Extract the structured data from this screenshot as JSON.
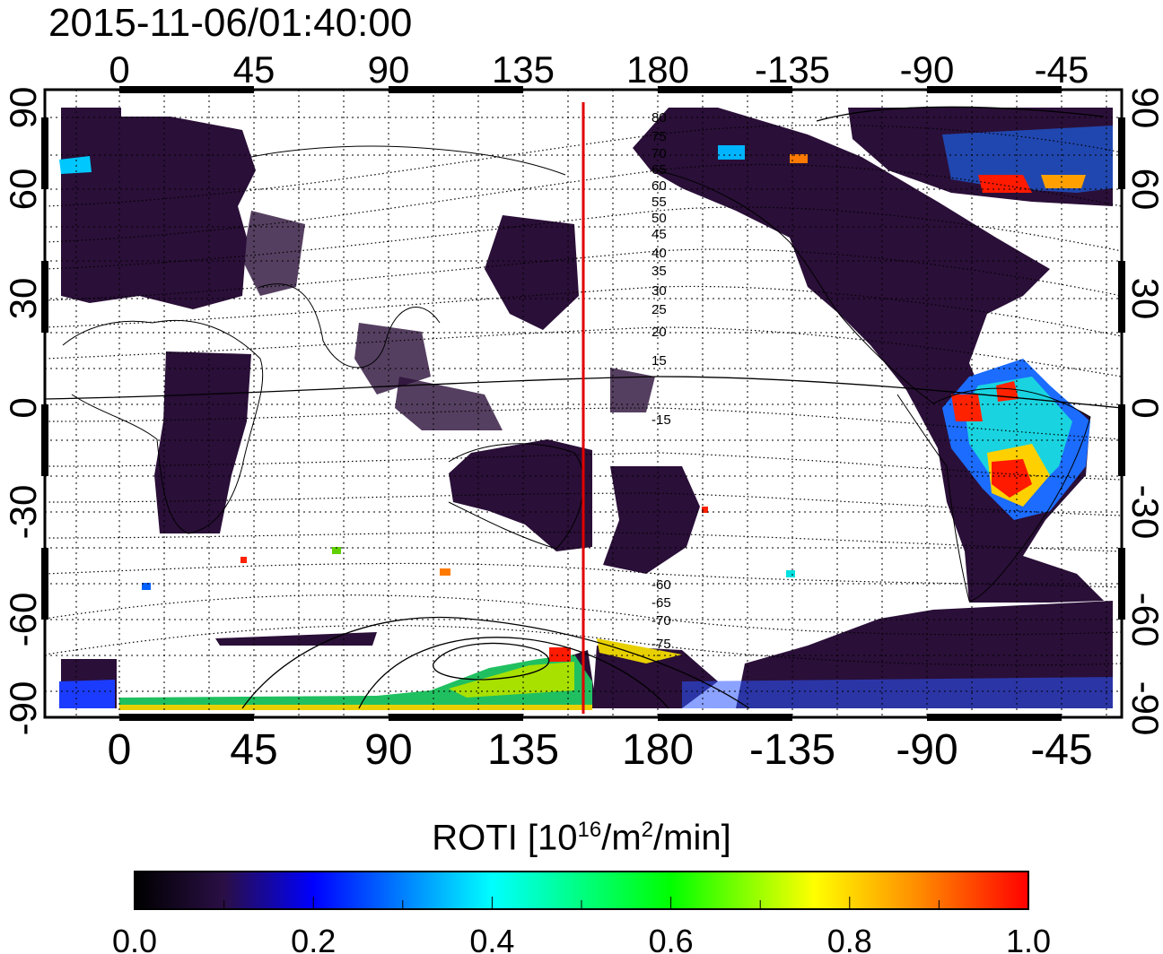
{
  "timestamp": "2015-11-06/01:40:00",
  "map": {
    "lon_ticks_top": [
      "0",
      "45",
      "90",
      "135",
      "180",
      "-135",
      "-90",
      "-45"
    ],
    "lon_ticks_bottom": [
      "0",
      "45",
      "90",
      "135",
      "180",
      "-135",
      "-90",
      "-45"
    ],
    "lat_ticks_left": [
      "90",
      "60",
      "30",
      "0",
      "-30",
      "-60",
      "-90"
    ],
    "lat_ticks_right": [
      "90",
      "60",
      "30",
      "0",
      "-30",
      "-60",
      "-90"
    ],
    "contour_labels": [
      "80",
      "75",
      "70",
      "65",
      "60",
      "55",
      "50",
      "45",
      "40",
      "35",
      "30",
      "25",
      "20",
      "15",
      "-15",
      "-60",
      "-65",
      "-70",
      "-75"
    ],
    "colors": {
      "no_data": "#ffffff",
      "low": "#2a0f38",
      "terminator_line": "#e00000"
    }
  },
  "colorbar": {
    "label_main": "ROTI  [10",
    "label_exp1": "16",
    "label_mid": "/m",
    "label_exp2": "2",
    "label_end": "/min]",
    "tick_labels": [
      "0.0",
      "0.2",
      "0.4",
      "0.6",
      "0.8",
      "1.0"
    ],
    "min": 0.0,
    "max": 1.0,
    "stops": [
      "#000000",
      "#3a0a5a",
      "#0000ff",
      "#00ffff",
      "#00ff00",
      "#ffff00",
      "#ff0000"
    ]
  }
}
